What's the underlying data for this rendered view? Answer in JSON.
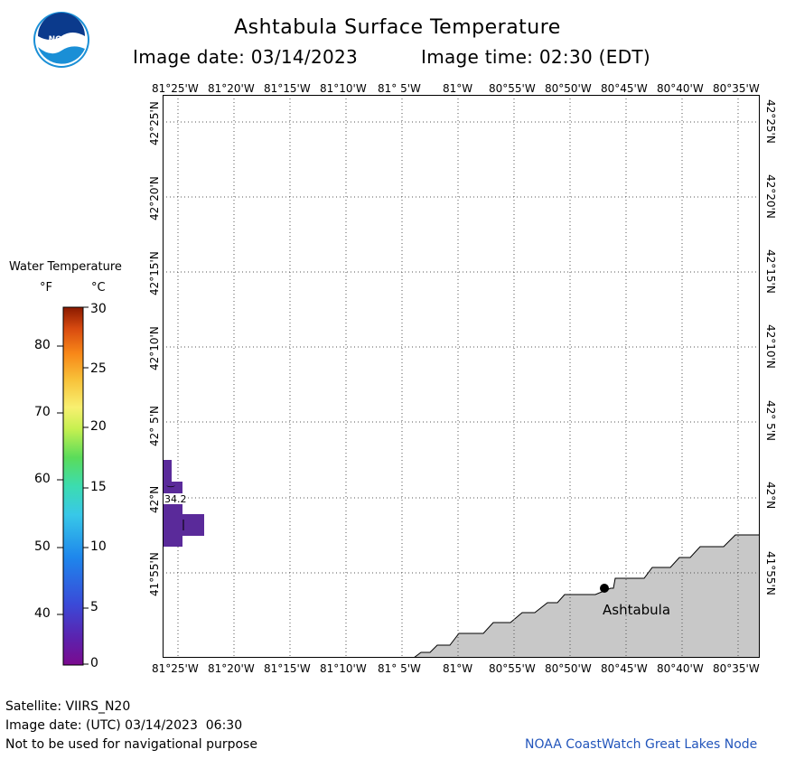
{
  "title": "Ashtabula Surface Temperature",
  "image_date_label": "Image date: 03/14/2023",
  "image_time_label": "Image time: 02:30 (EDT)",
  "logo": {
    "text": "NOAA",
    "icon": "noaa-logo"
  },
  "top_lon_ticks": [
    "81°25'W",
    "81°20'W",
    "81°15'W",
    "81°10'W",
    "81° 5'W",
    "81°W",
    "80°55'W",
    "80°50'W",
    "80°45'W",
    "80°40'W",
    "80°35'W"
  ],
  "bottom_lon_ticks": [
    "81°25'W",
    "81°20'W",
    "81°15'W",
    "81°10'W",
    "81° 5'W",
    "81°W",
    "80°55'W",
    "80°50'W",
    "80°45'W",
    "80°40'W",
    "80°35'W"
  ],
  "lat_ticks": [
    "42°25'N",
    "42°20'N",
    "42°15'N",
    "42°10'N",
    "42° 5'N",
    "42°N",
    "41°55'N"
  ],
  "legend": {
    "title": "Water Temperature",
    "unit_f": "°F",
    "unit_c": "°C",
    "f_ticks": [
      "80",
      "70",
      "60",
      "50",
      "40"
    ],
    "c_ticks": [
      "30",
      "25",
      "20",
      "15",
      "10",
      "5",
      "0"
    ],
    "colors": [
      "#4a0a6e",
      "#6a1fa0",
      "#3a3ad0",
      "#1e7ae8",
      "#2aaee8",
      "#3ad6c8",
      "#5cdc6a",
      "#a8ec4a",
      "#f0f050",
      "#f8c040",
      "#f89028",
      "#e85818",
      "#b02808",
      "#8a1c00"
    ]
  },
  "map": {
    "water_color": "#5a2a9a",
    "land_color": "#c8c8c8",
    "temp_label": "34.2",
    "city": "Ashtabula"
  },
  "footer": {
    "satellite": "Satellite: VIIRS_N20",
    "utc_date": "Image date: (UTC) 03/14/2023  06:30",
    "disclaimer": "Not to be used for navigational purpose",
    "credit": "NOAA CoastWatch Great Lakes Node",
    "credit_color": "#2255bb"
  }
}
